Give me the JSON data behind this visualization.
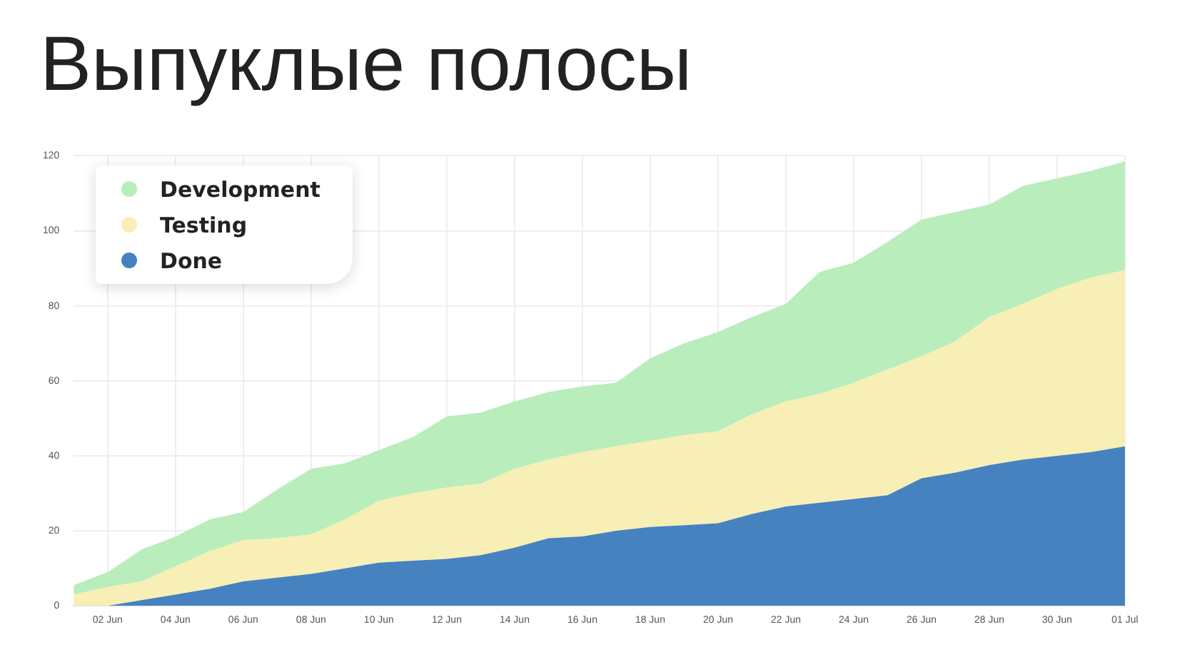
{
  "chart_data": {
    "type": "area",
    "title": "Выпуклые полосы",
    "stacked": true,
    "grid": true,
    "legend": "top left",
    "categories": [
      null,
      "02 Jun",
      null,
      "04 Jun",
      null,
      "06 Jun",
      null,
      "08 Jun",
      null,
      "10 Jun",
      null,
      "12 Jun",
      null,
      "14 Jun",
      null,
      "16 Jun",
      null,
      "18 Jun",
      null,
      "20 Jun",
      null,
      "22 Jun",
      null,
      "24 Jun",
      null,
      "26 Jun",
      null,
      "28 Jun",
      null,
      "30 Jun",
      null,
      "01 Jul"
    ],
    "ylim": [
      0,
      120
    ],
    "yticks": [
      0,
      20,
      40,
      60,
      80,
      100,
      120
    ],
    "series": [
      {
        "name": "Done",
        "color": "#4682c0",
        "values": [
          0,
          0,
          1.5,
          3,
          4.5,
          6.5,
          7.5,
          8.5,
          10,
          11.5,
          12,
          12.5,
          13.5,
          15.5,
          18,
          18.5,
          20,
          21,
          21.5,
          22,
          24.5,
          26.5,
          27.5,
          28.5,
          29.5,
          34,
          35.5,
          37.5,
          39,
          40,
          41,
          42.5
        ]
      },
      {
        "name": "Testing",
        "color": "#f7efb5",
        "values": [
          3,
          5,
          5,
          7.5,
          10,
          11,
          10.5,
          10.5,
          13,
          16.5,
          18,
          19,
          19,
          21,
          21,
          22.5,
          22.5,
          23,
          24,
          24.5,
          26.5,
          28,
          29,
          31,
          33.5,
          32.5,
          35,
          39.5,
          41.5,
          44.5,
          46.5,
          47
        ]
      },
      {
        "name": "Development",
        "color": "#b9edbc",
        "values": [
          2.5,
          4,
          8.5,
          8,
          8.5,
          7.5,
          13,
          17.5,
          15,
          13.5,
          15,
          19,
          19,
          18,
          18,
          17.5,
          17,
          22,
          24.5,
          26.5,
          26,
          26,
          32.5,
          32,
          34,
          36.5,
          34.5,
          30,
          31.5,
          29.5,
          28.5,
          29
        ]
      }
    ]
  }
}
